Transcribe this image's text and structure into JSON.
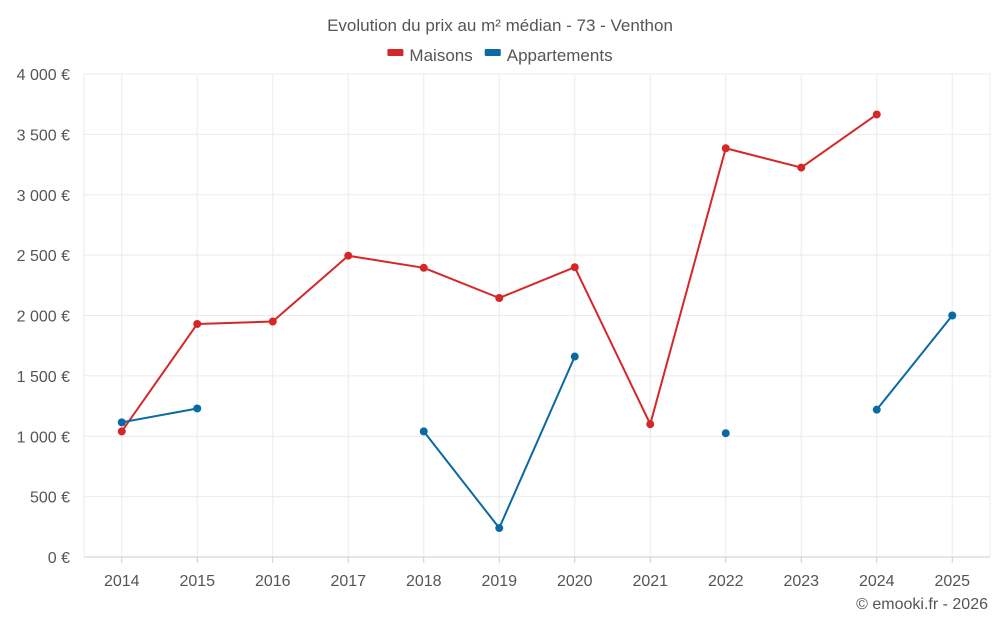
{
  "chart_data": {
    "type": "line",
    "title": "Evolution du prix au m² médian - 73 - Venthon",
    "categories": [
      "2014",
      "2015",
      "2016",
      "2017",
      "2018",
      "2019",
      "2020",
      "2021",
      "2022",
      "2023",
      "2024",
      "2025"
    ],
    "series": [
      {
        "name": "Maisons",
        "color": "#d62728",
        "values": [
          1040,
          1930,
          1950,
          2495,
          2395,
          2145,
          2400,
          1100,
          3385,
          3225,
          3665,
          null
        ]
      },
      {
        "name": "Appartements",
        "color": "#0a6aa1",
        "values": [
          1115,
          1230,
          null,
          null,
          1040,
          240,
          1660,
          null,
          1025,
          null,
          1220,
          2000
        ]
      }
    ],
    "ylim": [
      0,
      4000
    ],
    "yticks": [
      0,
      500,
      1000,
      1500,
      2000,
      2500,
      3000,
      3500,
      4000
    ],
    "ytick_labels": [
      "0 €",
      "500 €",
      "1 000 €",
      "1 500 €",
      "2 000 €",
      "2 500 €",
      "3 000 €",
      "3 500 €",
      "4 000 €"
    ],
    "legend_position": "top-center",
    "grid": true,
    "credit": "© emooki.fr - 2026"
  }
}
